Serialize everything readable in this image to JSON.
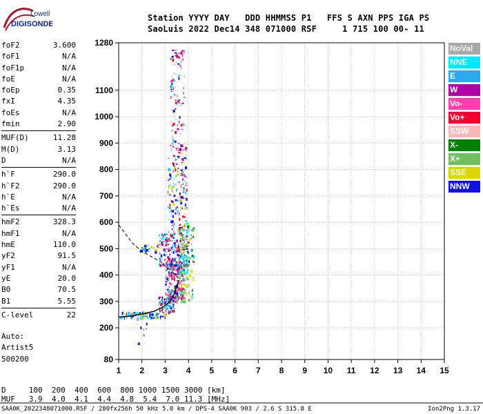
{
  "logo": {
    "line1": "Lowell",
    "line2": "DIGISONDE"
  },
  "header": {
    "line1": "Station YYYY DAY   DDD HHMMSS P1   FFS S AXN PPS IGA PS",
    "line2": "SaoLuis 2022 Dec14 348 071000 RSF     1 715 100 00- 11"
  },
  "params": [
    [
      {
        "k": "foF2",
        "v": "3.600"
      },
      {
        "k": "foF1",
        "v": "N/A"
      },
      {
        "k": "foF1p",
        "v": "N/A"
      },
      {
        "k": "foE",
        "v": "N/A"
      },
      {
        "k": "foEp",
        "v": "0.35"
      },
      {
        "k": "fxI",
        "v": "4.35"
      },
      {
        "k": "foEs",
        "v": "N/A"
      },
      {
        "k": "fmin",
        "v": "2.90"
      }
    ],
    [
      {
        "k": "MUF(D)",
        "v": "11.28"
      },
      {
        "k": "M(D)",
        "v": "3.13"
      },
      {
        "k": "D",
        "v": "N/A"
      }
    ],
    [
      {
        "k": "h`F",
        "v": "290.0"
      },
      {
        "k": "h`F2",
        "v": "290.0"
      },
      {
        "k": "h`E",
        "v": "N/A"
      },
      {
        "k": "h`Es",
        "v": "N/A"
      }
    ],
    [
      {
        "k": "hmF2",
        "v": "328.3"
      },
      {
        "k": "hmF1",
        "v": "N/A"
      },
      {
        "k": "hmE",
        "v": "110.0"
      },
      {
        "k": "yF2",
        "v": "91.5"
      },
      {
        "k": "yF1",
        "v": "N/A"
      },
      {
        "k": "yE",
        "v": "20.0"
      },
      {
        "k": "B0",
        "v": "70.5"
      },
      {
        "k": "B1",
        "v": "5.55"
      }
    ],
    [
      {
        "k": "C-level",
        "v": "22"
      }
    ]
  ],
  "auto": {
    "line1": "Auto:",
    "line2": "Artist5",
    "line3": "500200"
  },
  "legend": [
    {
      "label": "NoVal",
      "color": "#a8a8a8"
    },
    {
      "label": "NNE",
      "color": "#00e8ff"
    },
    {
      "label": "E",
      "color": "#30a8f0"
    },
    {
      "label": "W",
      "color": "#b000a8"
    },
    {
      "label": "Vo-",
      "color": "#ff40b0"
    },
    {
      "label": "Vo+",
      "color": "#f00030"
    },
    {
      "label": "SSW",
      "color": "#f8b8b8"
    },
    {
      "label": "X-",
      "color": "#008000"
    },
    {
      "label": "X+",
      "color": "#70c060"
    },
    {
      "label": "SSE",
      "color": "#d8d800"
    },
    {
      "label": "NNW",
      "color": "#1010e0"
    }
  ],
  "muf": {
    "row1": "D     100  200  400  600  800 1000 1500 3000 [km]",
    "row2": "MUF   3.9  4.0  4.1  4.4  4.8  5.4  7.0 11.3 [MHz]"
  },
  "footer": {
    "left": "SAA0K_2022348071000.RSF / 280fx256h 50 kHz 5.0 km / DPS-4 SAA0K 903 / 2.6 S 315.8 E",
    "right": "Ion2Png 1.3.17"
  },
  "chart_data": {
    "type": "scatter",
    "title": "",
    "xlabel": "",
    "ylabel": "",
    "xlim": [
      1,
      15
    ],
    "ylim": [
      80,
      1280
    ],
    "grid": true,
    "x_ticks": [
      1,
      2,
      3,
      4,
      5,
      6,
      7,
      8,
      9,
      10,
      11,
      12,
      13,
      14,
      15
    ],
    "y_ticks": [
      80,
      200,
      300,
      400,
      500,
      600,
      700,
      800,
      900,
      1000,
      1100,
      1280
    ],
    "trace_profile": {
      "x": [
        1.0,
        1.5,
        2.0,
        2.5,
        2.9,
        3.2,
        3.4,
        3.5,
        3.6
      ],
      "y": [
        240,
        245,
        252,
        262,
        278,
        300,
        330,
        360,
        380
      ]
    },
    "dashed_curve": {
      "x": [
        1.0,
        1.3,
        1.6,
        2.0,
        2.4,
        2.8,
        3.2,
        3.6
      ],
      "y": [
        590,
        555,
        520,
        490,
        470,
        450,
        420,
        385
      ]
    },
    "echo_clusters": [
      {
        "x0": 1.05,
        "x1": 3.0,
        "y0": 238,
        "y1": 262,
        "n": 110,
        "colors": [
          "NNW",
          "E",
          "SSE",
          "NNE"
        ]
      },
      {
        "x0": 2.7,
        "x1": 3.4,
        "y0": 262,
        "y1": 320,
        "n": 90,
        "colors": [
          "NNW",
          "E",
          "Vo+",
          "NNE"
        ]
      },
      {
        "x0": 3.0,
        "x1": 3.8,
        "y0": 300,
        "y1": 450,
        "n": 260,
        "colors": [
          "Vo+",
          "W",
          "NNW",
          "Vo-",
          "E",
          "X+"
        ]
      },
      {
        "x0": 2.7,
        "x1": 4.0,
        "y0": 430,
        "y1": 560,
        "n": 220,
        "colors": [
          "NNW",
          "E",
          "W",
          "Vo+",
          "NNE"
        ]
      },
      {
        "x0": 3.6,
        "x1": 4.2,
        "y0": 300,
        "y1": 600,
        "n": 150,
        "colors": [
          "X+",
          "X-",
          "SSE",
          "NNE"
        ]
      },
      {
        "x0": 3.1,
        "x1": 3.9,
        "y0": 560,
        "y1": 900,
        "n": 190,
        "colors": [
          "NNW",
          "W",
          "Vo+",
          "E",
          "NNE",
          "SSE"
        ]
      },
      {
        "x0": 3.2,
        "x1": 3.8,
        "y0": 880,
        "y1": 1260,
        "n": 110,
        "colors": [
          "NNW",
          "W",
          "Vo+",
          "Vo-",
          "SSW",
          "NNE"
        ]
      },
      {
        "x0": 1.9,
        "x1": 2.7,
        "y0": 480,
        "y1": 520,
        "n": 30,
        "colors": [
          "NNW",
          "SSE",
          "E"
        ]
      },
      {
        "x0": 1.6,
        "x1": 2.2,
        "y0": 120,
        "y1": 240,
        "n": 12,
        "colors": [
          "NNW",
          "SSE",
          "NoVal"
        ]
      }
    ]
  }
}
